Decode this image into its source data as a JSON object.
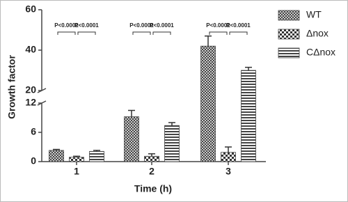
{
  "chart_data": {
    "type": "bar",
    "x_label": "Time (h)",
    "y_label": "Growth factor",
    "categories": [
      "1",
      "2",
      "3"
    ],
    "series": [
      {
        "name": "WT",
        "color": "#444444",
        "pattern": "dots",
        "values": [
          2.3,
          9.2,
          42
        ],
        "errors": [
          0.2,
          1.3,
          5
        ]
      },
      {
        "name": "Δnox",
        "color": "#333333",
        "pattern": "checker",
        "values": [
          0.9,
          1.1,
          1.9
        ],
        "errors": [
          0.2,
          0.5,
          1.1
        ]
      },
      {
        "name": "CΔnox",
        "color": "#444444",
        "pattern": "stripes",
        "values": [
          2.1,
          7.4,
          30
        ],
        "errors": [
          0.2,
          0.6,
          1.5
        ]
      }
    ],
    "annotations": [
      [
        "P<0.0001",
        "P<0.0001"
      ],
      [
        "P<0.0001",
        "P<0.0001"
      ],
      [
        "P<0.0001",
        "P<0.0001"
      ]
    ],
    "ylim": [
      0,
      60
    ],
    "y_break": [
      12,
      20
    ],
    "yticks": [
      0,
      6,
      12,
      20,
      40,
      60
    ],
    "legend": "right"
  }
}
